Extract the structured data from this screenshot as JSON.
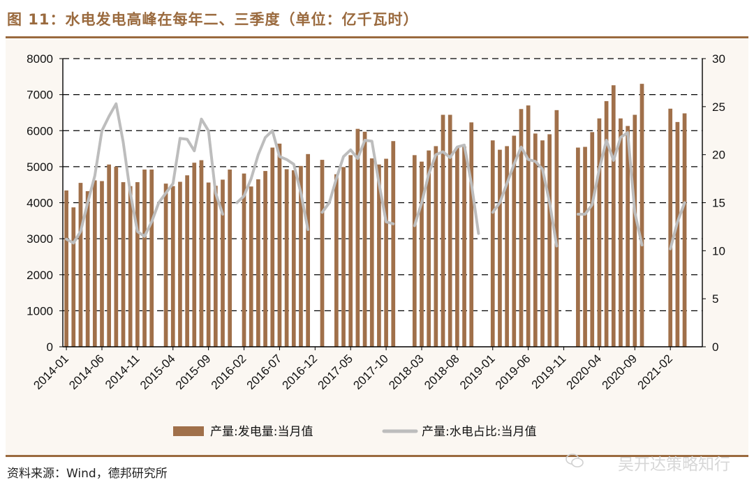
{
  "header": {
    "title": "图 11：水电发电高峰在每年二、三季度（单位：亿千瓦时）"
  },
  "footer": {
    "source": "资料来源：Wind，德邦研究所",
    "watermark": "吴开达策略知行"
  },
  "colors": {
    "bar": "#a0704a",
    "line": "#bdbdbd",
    "accent": "#9a6a3e"
  },
  "chart_data": {
    "type": "bar+line",
    "title": "图 11：水电发电高峰在每年二、三季度（单位：亿千瓦时）",
    "y_left": {
      "min": 0,
      "max": 8000,
      "ticks": [
        "0",
        "1000",
        "2000",
        "3000",
        "4000",
        "5000",
        "6000",
        "7000",
        "8000"
      ]
    },
    "y_right": {
      "min": 0,
      "max": 30,
      "ticks": [
        "0",
        "5",
        "10",
        "15",
        "20",
        "25",
        "30"
      ]
    },
    "x_tick_labels": [
      "2014-01",
      "2014-06",
      "2014-11",
      "2015-04",
      "2015-09",
      "2016-02",
      "2016-07",
      "2016-12",
      "2017-05",
      "2017-10",
      "2018-03",
      "2018-08",
      "2019-01",
      "2019-06",
      "2019-11",
      "2020-04",
      "2020-09",
      "2021-02"
    ],
    "categories": [
      "2014-01",
      "2014-02",
      "2014-03",
      "2014-04",
      "2014-05",
      "2014-06",
      "2014-07",
      "2014-08",
      "2014-09",
      "2014-10",
      "2014-11",
      "2014-12",
      "2015-01",
      "2015-02",
      "2015-03",
      "2015-04",
      "2015-05",
      "2015-06",
      "2015-07",
      "2015-08",
      "2015-09",
      "2015-10",
      "2015-11",
      "2015-12",
      "2016-01",
      "2016-02",
      "2016-03",
      "2016-04",
      "2016-05",
      "2016-06",
      "2016-07",
      "2016-08",
      "2016-09",
      "2016-10",
      "2016-11",
      "2016-12",
      "2017-01",
      "2017-02",
      "2017-03",
      "2017-04",
      "2017-05",
      "2017-06",
      "2017-07",
      "2017-08",
      "2017-09",
      "2017-10",
      "2017-11",
      "2017-12",
      "2018-01",
      "2018-02",
      "2018-03",
      "2018-04",
      "2018-05",
      "2018-06",
      "2018-07",
      "2018-08",
      "2018-09",
      "2018-10",
      "2018-11",
      "2018-12",
      "2019-01",
      "2019-02",
      "2019-03",
      "2019-04",
      "2019-05",
      "2019-06",
      "2019-07",
      "2019-08",
      "2019-09",
      "2019-10",
      "2019-11",
      "2019-12",
      "2020-01",
      "2020-02",
      "2020-03",
      "2020-04",
      "2020-05",
      "2020-06",
      "2020-07",
      "2020-08",
      "2020-09",
      "2020-10",
      "2020-11",
      "2020-12",
      "2021-01",
      "2021-02",
      "2021-03",
      "2021-04",
      "2021-05",
      "2021-06"
    ],
    "series": [
      {
        "name": "产量:发电量:当月值",
        "axis": "left",
        "type": "bar",
        "values": [
          4340,
          3870,
          4550,
          4320,
          4620,
          4600,
          5060,
          5000,
          4570,
          4460,
          4570,
          4920,
          4920,
          null,
          4530,
          4460,
          4580,
          4760,
          5110,
          5180,
          4560,
          4470,
          4640,
          4920,
          null,
          4810,
          4450,
          4650,
          4880,
          5530,
          5640,
          4930,
          4900,
          5020,
          5350,
          null,
          5190,
          null,
          4790,
          4990,
          5320,
          6050,
          5970,
          5230,
          5060,
          5220,
          5710,
          null,
          null,
          5320,
          5140,
          5450,
          5570,
          6440,
          6440,
          5540,
          5560,
          6230,
          null,
          null,
          5730,
          5470,
          5570,
          5860,
          6600,
          6700,
          5920,
          5730,
          5900,
          6570,
          null,
          null,
          5530,
          5550,
          5960,
          6340,
          6820,
          7260,
          6340,
          6130,
          6440,
          7300,
          null,
          null,
          null,
          6610,
          6240,
          6480,
          null,
          null
        ]
      },
      {
        "name": "产量:水电占比:当月值",
        "axis": "right",
        "type": "line",
        "values": [
          11.2,
          10.8,
          12.0,
          15.0,
          17.8,
          22.5,
          24.0,
          25.3,
          21.3,
          16.0,
          12.0,
          11.5,
          13.0,
          15.0,
          16.0,
          17.0,
          21.7,
          21.6,
          20.4,
          23.7,
          22.5,
          16.0,
          13.8,
          null,
          15.0,
          15.7,
          17.5,
          20.0,
          21.8,
          22.5,
          19.8,
          19.5,
          19.0,
          16.0,
          12.2,
          null,
          14.0,
          15.0,
          17.5,
          19.8,
          20.5,
          19.6,
          21.5,
          21.4,
          17.0,
          13.0,
          12.8,
          null,
          null,
          12.6,
          15.0,
          18.0,
          20.0,
          20.3,
          19.7,
          20.8,
          21.0,
          17.0,
          11.8,
          null,
          14.0,
          15.0,
          17.0,
          19.0,
          20.8,
          19.5,
          19.3,
          18.5,
          15.0,
          10.5,
          null,
          null,
          13.8,
          13.8,
          14.8,
          18.5,
          21.5,
          19.4,
          21.8,
          22.3,
          14.0,
          10.6,
          null,
          null,
          null,
          10.2,
          13.0,
          15.0,
          null,
          null
        ]
      }
    ],
    "legend": {
      "position": "bottom",
      "items": [
        "产量:发电量:当月值",
        "产量:水电占比:当月值"
      ]
    }
  }
}
